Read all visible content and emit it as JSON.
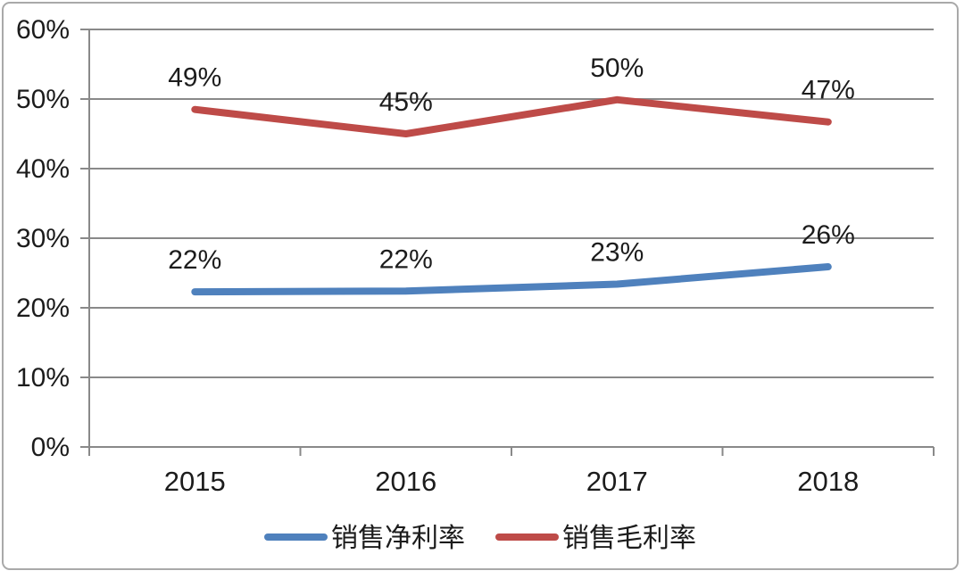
{
  "chart_data": {
    "type": "line",
    "title": "",
    "xlabel": "",
    "ylabel": "",
    "categories": [
      "2015",
      "2016",
      "2017",
      "2018"
    ],
    "series": [
      {
        "name": "销售净利率",
        "slug": "net-profit-margin",
        "color": "#4F81BD",
        "values": [
          22.3,
          22.4,
          23.4,
          25.9
        ],
        "labels": [
          "22%",
          "22%",
          "23%",
          "26%"
        ]
      },
      {
        "name": "销售毛利率",
        "slug": "gross-profit-margin",
        "color": "#BE4B48",
        "values": [
          48.5,
          45.0,
          49.9,
          46.7
        ],
        "labels": [
          "49%",
          "45%",
          "50%",
          "47%"
        ]
      }
    ],
    "ylim": [
      0,
      60
    ],
    "ytick_step": 10,
    "ytick_labels": [
      "0%",
      "10%",
      "20%",
      "30%",
      "40%",
      "50%",
      "60%"
    ],
    "grid": true,
    "legend_position": "bottom"
  },
  "colors": {
    "background": "#ffffff",
    "grid": "#898989",
    "axis": "#898989",
    "text": "#1c1c1c",
    "frame_border": "#a9a9a9"
  }
}
